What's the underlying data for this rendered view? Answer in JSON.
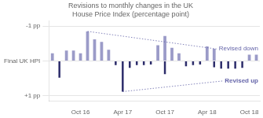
{
  "chart_data": {
    "type": "bar",
    "title": "Revisions to monthly changes in the UK House Price Index (percentage point)",
    "categories": [
      null,
      null,
      null,
      null,
      "Oct 16",
      null,
      null,
      null,
      null,
      null,
      "Apr 17",
      null,
      null,
      null,
      null,
      null,
      "Oct 17",
      null,
      null,
      null,
      null,
      null,
      "Apr 18",
      null,
      null,
      null,
      null,
      null,
      "Oct 18",
      null
    ],
    "series": [
      {
        "color": "#9b9bc8",
        "values": [
          -0.22,
          0.0,
          -0.3,
          -0.3,
          -0.22,
          -0.85,
          -0.62,
          -0.55,
          -0.32,
          0.0,
          0.0,
          0.0,
          0.0,
          0.0,
          0.0,
          -0.45,
          -0.72,
          -0.38,
          -0.22,
          0.0,
          0.0,
          0.0,
          -0.42,
          -0.35,
          0.0,
          0.0,
          0.0,
          0.0,
          -0.18,
          -0.18
        ]
      },
      {
        "color": "#2d2d6b",
        "values": [
          0.0,
          0.48,
          0.0,
          0.0,
          0.0,
          0.0,
          0.0,
          0.0,
          0.0,
          0.12,
          0.88,
          0.2,
          0.12,
          0.12,
          0.1,
          0.0,
          0.38,
          0.0,
          0.0,
          0.15,
          0.12,
          0.1,
          0.0,
          0.18,
          0.22,
          0.22,
          0.22,
          0.2,
          0.0,
          0.0
        ]
      }
    ],
    "ylim": [
      1.15,
      -1.15
    ],
    "yticks": [
      {
        "value": -1,
        "label": "-1 pp"
      },
      {
        "value": 0,
        "label": "Final UK HPI"
      },
      {
        "value": 1,
        "label": "+1 pp"
      }
    ],
    "grid": true,
    "annotations": [
      {
        "text": "Revised down",
        "color": "#6666aa"
      },
      {
        "text": "Revised up",
        "color": "#6666aa"
      }
    ]
  }
}
